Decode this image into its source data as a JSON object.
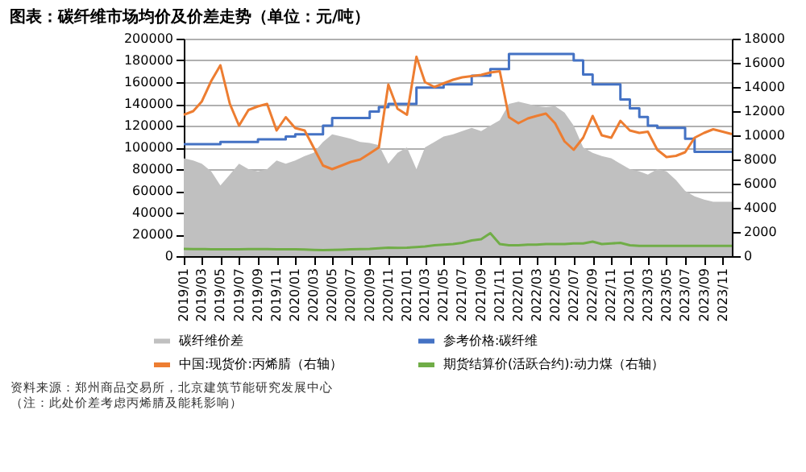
{
  "chart_data": {
    "type": "line",
    "title": "图表：碳纤维市场均价及价差走势（单位：元/吨）",
    "x": [
      "2019-01",
      "2019-02",
      "2019-03",
      "2019-04",
      "2019-05",
      "2019-06",
      "2019-07",
      "2019-08",
      "2019-09",
      "2019-10",
      "2019-11",
      "2019-12",
      "2020-01",
      "2020-02",
      "2020-03",
      "2020-04",
      "2020-05",
      "2020-06",
      "2020-07",
      "2020-08",
      "2020-09",
      "2020-10",
      "2020-11",
      "2020-12",
      "2021-01",
      "2021-02",
      "2021-03",
      "2021-04",
      "2021-05",
      "2021-06",
      "2021-07",
      "2021-08",
      "2021-09",
      "2021-10",
      "2021-11",
      "2021-12",
      "2022-01",
      "2022-02",
      "2022-03",
      "2022-04",
      "2022-05",
      "2022-06",
      "2022-07",
      "2022-08",
      "2022-09",
      "2022-10",
      "2022-11",
      "2022-12",
      "2023-01",
      "2023-02",
      "2023-03",
      "2023-04",
      "2023-05",
      "2023-06",
      "2023-07",
      "2023-08",
      "2023-09",
      "2023-10",
      "2023-11",
      "2023-12"
    ],
    "xlim": [
      "2019-01",
      "2023-12"
    ],
    "xticks": [
      {
        "value": "2019-01",
        "label": "2019/01"
      },
      {
        "value": "2019-03",
        "label": "2019/03"
      },
      {
        "value": "2019-05",
        "label": "2019/05"
      },
      {
        "value": "2019-07",
        "label": "2019/07"
      },
      {
        "value": "2019-09",
        "label": "2019/09"
      },
      {
        "value": "2019-11",
        "label": "2019/11"
      },
      {
        "value": "2020-01",
        "label": "2020/01"
      },
      {
        "value": "2020-03",
        "label": "2020/03"
      },
      {
        "value": "2020-05",
        "label": "2020/05"
      },
      {
        "value": "2020-07",
        "label": "2020/07"
      },
      {
        "value": "2020-09",
        "label": "2020/09"
      },
      {
        "value": "2020-11",
        "label": "2020/11"
      },
      {
        "value": "2021-01",
        "label": "2021/01"
      },
      {
        "value": "2021-03",
        "label": "2021/03"
      },
      {
        "value": "2021-05",
        "label": "2021/05"
      },
      {
        "value": "2021-07",
        "label": "2021/07"
      },
      {
        "value": "2021-09",
        "label": "2021/09"
      },
      {
        "value": "2021-11",
        "label": "2021/11"
      },
      {
        "value": "2022-01",
        "label": "2022/01"
      },
      {
        "value": "2022-03",
        "label": "2022/03"
      },
      {
        "value": "2022-05",
        "label": "2022/05"
      },
      {
        "value": "2022-07",
        "label": "2022/07"
      },
      {
        "value": "2022-09",
        "label": "2022/09"
      },
      {
        "value": "2022-11",
        "label": "2022/11"
      },
      {
        "value": "2023-01",
        "label": "2023/01"
      },
      {
        "value": "2023-03",
        "label": "2023/03"
      },
      {
        "value": "2023-05",
        "label": "2023/05"
      },
      {
        "value": "2023-07",
        "label": "2023/07"
      },
      {
        "value": "2023-09",
        "label": "2023/09"
      },
      {
        "value": "2023-11",
        "label": "2023/11"
      }
    ],
    "ylim": [
      0,
      200000
    ],
    "yticks": [
      0,
      20000,
      40000,
      60000,
      80000,
      100000,
      120000,
      140000,
      160000,
      180000,
      200000
    ],
    "y2lim": [
      0,
      18000
    ],
    "y2ticks": [
      0,
      2000,
      4000,
      6000,
      8000,
      10000,
      12000,
      14000,
      16000,
      18000
    ],
    "grid": "y",
    "legend": "bottom",
    "series": [
      {
        "name": "碳纤维价差",
        "type": "area",
        "color": "#c0c0c0",
        "values": [
          90000,
          88000,
          85000,
          78000,
          65000,
          75000,
          85000,
          80000,
          78000,
          80000,
          88000,
          85000,
          88000,
          92000,
          95000,
          105000,
          112000,
          110000,
          108000,
          105000,
          104000,
          102000,
          85000,
          95000,
          100000,
          80000,
          100000,
          105000,
          110000,
          112000,
          115000,
          118000,
          115000,
          120000,
          125000,
          140000,
          142000,
          140000,
          138000,
          137000,
          138000,
          132000,
          120000,
          100000,
          95000,
          92000,
          90000,
          85000,
          80000,
          78000,
          75000,
          80000,
          78000,
          70000,
          60000,
          55000,
          52000,
          50000,
          50000,
          50000
        ]
      },
      {
        "name": "参考价格:碳纤维",
        "type": "step",
        "color": "#4472c4",
        "values": [
          103000,
          103000,
          103000,
          103000,
          105000,
          105000,
          105000,
          105000,
          107500,
          107500,
          107500,
          110000,
          112000,
          112000,
          112000,
          120000,
          127000,
          127000,
          127000,
          127000,
          133000,
          137000,
          140000,
          140000,
          140000,
          155000,
          155000,
          155000,
          158000,
          158000,
          158000,
          166000,
          166000,
          172000,
          172000,
          186000,
          186000,
          186000,
          186000,
          186000,
          186000,
          186000,
          180000,
          167000,
          158000,
          158000,
          158000,
          144000,
          136000,
          128000,
          120000,
          118000,
          118000,
          118000,
          108000,
          96000,
          96000,
          96000,
          96000,
          96000
        ]
      },
      {
        "name": "中国:现货价:丙烯腈（右轴）",
        "axis": "y2",
        "color": "#ed7d31",
        "values": [
          11700,
          12000,
          12800,
          14500,
          15800,
          12600,
          10800,
          12100,
          12400,
          12600,
          10400,
          11500,
          10600,
          10400,
          9000,
          7500,
          7200,
          7500,
          7800,
          8000,
          8500,
          9000,
          14200,
          12200,
          11700,
          16500,
          14400,
          14000,
          14300,
          14600,
          14800,
          14900,
          15000,
          15200,
          15300,
          11500,
          11000,
          11400,
          11600,
          11800,
          11000,
          9500,
          8800,
          9800,
          11600,
          10000,
          9800,
          11200,
          10400,
          10200,
          10300,
          8800,
          8200,
          8300,
          8600,
          9800,
          10200,
          10500,
          10300,
          10100
        ]
      },
      {
        "name": "期货结算价(活跃合约):动力煤（右轴）",
        "axis": "y2",
        "color": "#70ad47",
        "values": [
          600,
          590,
          580,
          570,
          560,
          560,
          570,
          580,
          580,
          580,
          570,
          570,
          560,
          550,
          520,
          500,
          520,
          540,
          560,
          580,
          600,
          650,
          700,
          690,
          700,
          750,
          800,
          900,
          950,
          1000,
          1100,
          1300,
          1400,
          1900,
          1000,
          900,
          900,
          950,
          950,
          1000,
          1000,
          1000,
          1050,
          1050,
          1200,
          1000,
          1050,
          1100,
          900,
          850,
          850,
          850,
          850,
          850,
          850,
          850,
          850,
          850,
          850,
          850
        ]
      }
    ],
    "annotations": [
      "资料来源：郑州商品交易所，北京建筑节能研究发展中心",
      "（注：此处价差考虑丙烯腈及能耗影响）"
    ]
  }
}
